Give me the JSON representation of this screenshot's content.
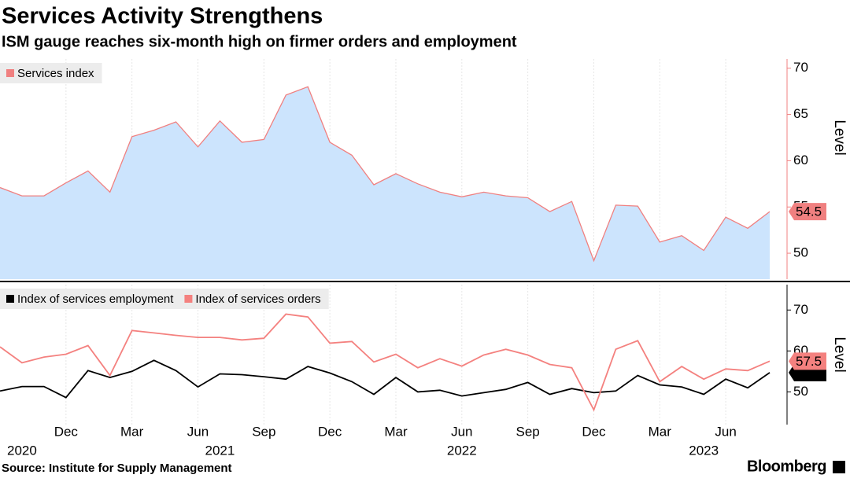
{
  "title": "Services Activity Strengthens",
  "subtitle": "ISM gauge reaches six-month high on firmer orders and employment",
  "source": "Source: Institute for Supply Management",
  "brand": "Bloomberg",
  "chart_data": [
    {
      "type": "area",
      "x": [
        "2020-09",
        "2020-10",
        "2020-11",
        "2020-12",
        "2021-01",
        "2021-02",
        "2021-03",
        "2021-04",
        "2021-05",
        "2021-06",
        "2021-07",
        "2021-08",
        "2021-09",
        "2021-10",
        "2021-11",
        "2021-12",
        "2022-01",
        "2022-02",
        "2022-03",
        "2022-04",
        "2022-05",
        "2022-06",
        "2022-07",
        "2022-08",
        "2022-09",
        "2022-10",
        "2022-11",
        "2022-12",
        "2023-01",
        "2023-02",
        "2023-03",
        "2023-04",
        "2023-05",
        "2023-06",
        "2023-07",
        "2023-08"
      ],
      "series": [
        {
          "name": "Services index",
          "color": "#f08080",
          "fill": "#cce4fd",
          "values": [
            57.1,
            56.2,
            56.2,
            57.6,
            58.9,
            56.6,
            62.6,
            63.3,
            64.2,
            61.5,
            64.3,
            62.0,
            62.3,
            67.1,
            68.0,
            62.0,
            60.6,
            57.4,
            58.6,
            57.5,
            56.6,
            56.1,
            56.6,
            56.2,
            56.0,
            54.5,
            55.6,
            49.2,
            55.2,
            55.1,
            51.2,
            51.9,
            50.3,
            53.9,
            52.7,
            54.5
          ]
        }
      ],
      "ylim": [
        47.2,
        71
      ],
      "yticks": [
        50,
        55,
        60,
        65,
        70
      ],
      "y_axis_label": "Level",
      "axis_color": "#f08080"
    },
    {
      "type": "line",
      "x": [
        "2020-09",
        "2020-10",
        "2020-11",
        "2020-12",
        "2021-01",
        "2021-02",
        "2021-03",
        "2021-04",
        "2021-05",
        "2021-06",
        "2021-07",
        "2021-08",
        "2021-09",
        "2021-10",
        "2021-11",
        "2021-12",
        "2022-01",
        "2022-02",
        "2022-03",
        "2022-04",
        "2022-05",
        "2022-06",
        "2022-07",
        "2022-08",
        "2022-09",
        "2022-10",
        "2022-11",
        "2022-12",
        "2023-01",
        "2023-02",
        "2023-03",
        "2023-04",
        "2023-05",
        "2023-06",
        "2023-07",
        "2023-08"
      ],
      "series": [
        {
          "name": "Index of services employment",
          "color": "#000000",
          "values": [
            50.2,
            51.3,
            51.3,
            48.6,
            55.2,
            53.5,
            55.0,
            57.7,
            55.2,
            51.2,
            54.4,
            54.2,
            53.7,
            53.1,
            56.2,
            54.6,
            52.5,
            49.4,
            53.5,
            50.0,
            50.4,
            49.0,
            49.8,
            50.6,
            52.3,
            49.4,
            50.8,
            49.8,
            50.2,
            54.0,
            51.7,
            51.2,
            49.4,
            53.1,
            51.0,
            54.7
          ]
        },
        {
          "name": "Index of services orders",
          "color": "#f4817f",
          "values": [
            61.0,
            57.1,
            58.5,
            59.2,
            61.3,
            54.0,
            65.0,
            64.4,
            63.8,
            63.3,
            63.3,
            62.7,
            63.1,
            69.0,
            68.3,
            61.9,
            62.3,
            57.3,
            59.2,
            55.9,
            58.1,
            56.3,
            59.0,
            60.4,
            59.0,
            56.7,
            55.9,
            45.6,
            60.4,
            62.5,
            52.5,
            56.2,
            53.1,
            55.6,
            55.2,
            57.5
          ]
        }
      ],
      "ylim": [
        42,
        76.2
      ],
      "yticks": [
        50,
        60,
        70
      ],
      "y_axis_label": "Level",
      "axis_color": "#000000",
      "xticks": [
        {
          "value": "2020-12",
          "label": "Dec"
        },
        {
          "value": "2021-03",
          "label": "Mar"
        },
        {
          "value": "2021-06",
          "label": "Jun"
        },
        {
          "value": "2021-09",
          "label": "Sep"
        },
        {
          "value": "2021-12",
          "label": "Dec"
        },
        {
          "value": "2022-03",
          "label": "Mar"
        },
        {
          "value": "2022-06",
          "label": "Jun"
        },
        {
          "value": "2022-09",
          "label": "Sep"
        },
        {
          "value": "2022-12",
          "label": "Dec"
        },
        {
          "value": "2023-03",
          "label": "Mar"
        },
        {
          "value": "2023-06",
          "label": "Jun"
        }
      ],
      "year_ticks": [
        {
          "value": "2020-10",
          "label": "2020"
        },
        {
          "value": "2021-07",
          "label": "2021"
        },
        {
          "value": "2022-06",
          "label": "2022"
        },
        {
          "value": "2023-05",
          "label": "2023"
        }
      ]
    }
  ]
}
